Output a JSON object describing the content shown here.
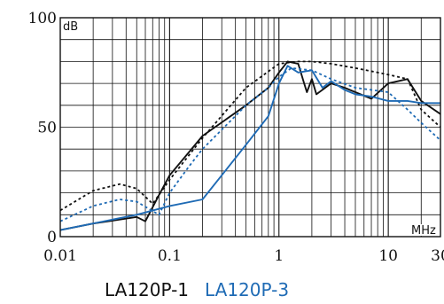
{
  "chart_data": {
    "type": "line",
    "x_scale": "log",
    "xlim": [
      0.01,
      30
    ],
    "ylim": [
      0,
      100
    ],
    "grid": true,
    "y_unit": "dB",
    "x_unit": "MHz",
    "x_ticks": [
      {
        "value": 0.01,
        "label": "0.01"
      },
      {
        "value": 0.1,
        "label": "0.1"
      },
      {
        "value": 1,
        "label": "1"
      },
      {
        "value": 10,
        "label": "10"
      },
      {
        "value": 30,
        "label": "30"
      }
    ],
    "y_ticks": [
      {
        "value": 0,
        "label": "0"
      },
      {
        "value": 50,
        "label": "50"
      },
      {
        "value": 100,
        "label": "100"
      }
    ],
    "legend_placement": "bottom",
    "series": [
      {
        "name": "LA120P-1",
        "color": "#111111",
        "style": "solid",
        "x": [
          0.01,
          0.02,
          0.05,
          0.06,
          0.08,
          0.1,
          0.2,
          0.5,
          0.8,
          1,
          1.2,
          1.5,
          1.7,
          1.8,
          2,
          2.2,
          3,
          4,
          5,
          7,
          10,
          15,
          20,
          30
        ],
        "y": [
          3,
          6,
          9,
          7,
          19,
          28,
          46,
          60,
          68,
          75,
          80,
          79,
          70,
          66,
          72,
          65,
          70,
          68,
          66,
          63,
          70,
          72,
          62,
          56
        ]
      },
      {
        "name": "LA120P-1 (dotted)",
        "color": "#111111",
        "style": "dotted",
        "x": [
          0.01,
          0.02,
          0.035,
          0.05,
          0.07,
          0.1,
          0.2,
          0.5,
          1,
          1.5,
          2,
          3,
          5,
          8,
          10,
          15,
          20,
          30
        ],
        "y": [
          12,
          21,
          24,
          22,
          15,
          26,
          45,
          68,
          79,
          80,
          80,
          79,
          77,
          75,
          74,
          72,
          58,
          50
        ]
      },
      {
        "name": "LA120P-3",
        "color": "#1f6bb5",
        "style": "solid",
        "x": [
          0.01,
          0.05,
          0.1,
          0.2,
          0.3,
          0.5,
          0.8,
          1,
          1.2,
          1.5,
          2,
          2.5,
          3,
          4,
          5,
          7,
          10,
          15,
          20,
          30
        ],
        "y": [
          3,
          10,
          14,
          17,
          28,
          42,
          55,
          70,
          78,
          75,
          76,
          68,
          71,
          67,
          65,
          64,
          62,
          62,
          61,
          61
        ]
      },
      {
        "name": "LA120P-3 (dotted)",
        "color": "#1f6bb5",
        "style": "dotted",
        "x": [
          0.01,
          0.02,
          0.035,
          0.05,
          0.08,
          0.1,
          0.15,
          0.2,
          0.5,
          0.8,
          1,
          1.3,
          2,
          3,
          5,
          10,
          15,
          20,
          30
        ],
        "y": [
          7,
          14,
          17,
          16,
          10,
          20,
          32,
          40,
          60,
          68,
          73,
          77,
          76,
          72,
          68,
          66,
          58,
          52,
          44
        ]
      }
    ],
    "legend": [
      {
        "label": "LA120P-1",
        "color": "#111111"
      },
      {
        "label": "LA120P-3",
        "color": "#1f6bb5"
      }
    ]
  }
}
